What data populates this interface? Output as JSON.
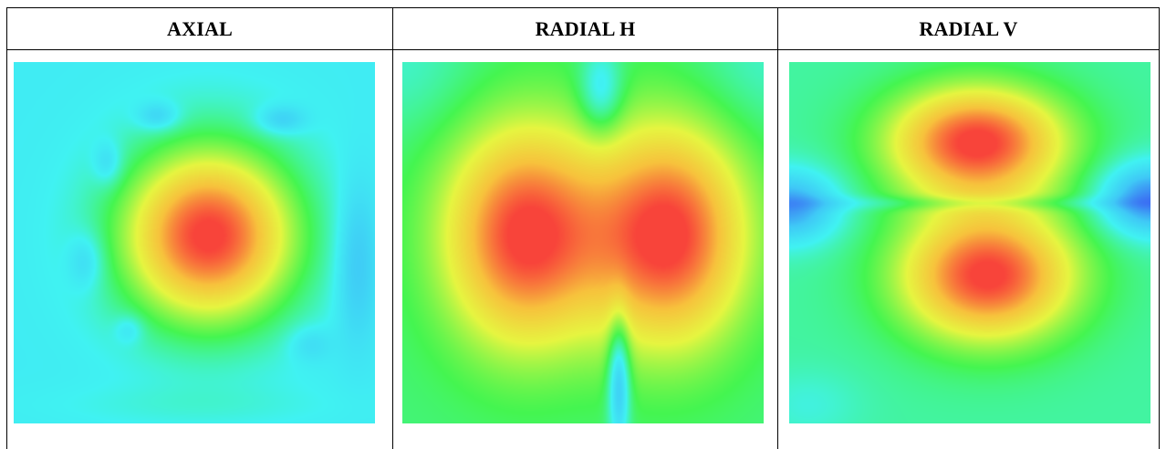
{
  "header": {
    "columns": [
      {
        "label": "AXIAL"
      },
      {
        "label": "RADIAL H"
      },
      {
        "label": "RADIAL V"
      }
    ]
  },
  "panels": [
    {
      "id": "axial",
      "pattern": "central-peak",
      "colormap": "jet"
    },
    {
      "id": "radial-h",
      "pattern": "horizontal-dipole",
      "colormap": "jet"
    },
    {
      "id": "radial-v",
      "pattern": "vertical-dipole",
      "colormap": "jet"
    }
  ],
  "colormap_stops": [
    "#3a5cf2",
    "#3fc9f6",
    "#40f2f2",
    "#44f550",
    "#e6f540",
    "#f7c23c",
    "#f8443a"
  ]
}
